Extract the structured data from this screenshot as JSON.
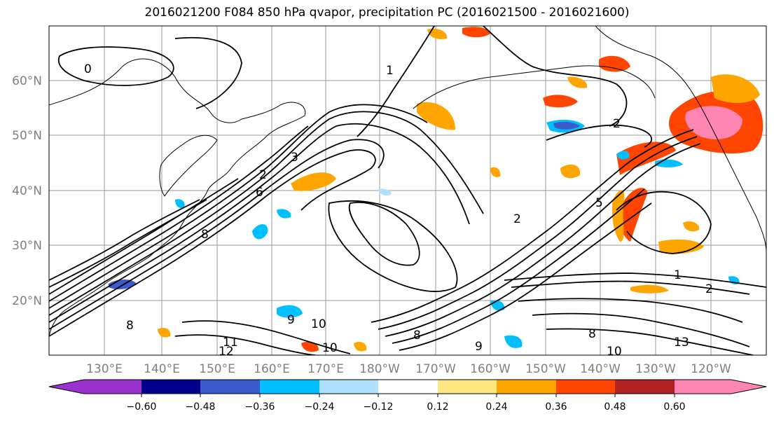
{
  "title": "2016021200 F084 850 hPa qvapor, precipitation PC (2016021500 - 2016021600)",
  "lat_labels": [
    "60°N",
    "50°N",
    "40°N",
    "30°N",
    "20°N"
  ],
  "lon_labels": [
    "130°E",
    "140°E",
    "150°E",
    "160°E",
    "170°E",
    "180°W",
    "170°W",
    "160°W",
    "150°W",
    "140°W",
    "130°W",
    "120°W"
  ],
  "colorbar": {
    "ticks": [
      "−0.60",
      "−0.48",
      "−0.36",
      "−0.24",
      "−0.12",
      "0.12",
      "0.24",
      "0.36",
      "0.48",
      "0.60"
    ],
    "colors": [
      "#9932cc",
      "#00008b",
      "#3a5bc9",
      "#00bfff",
      "#b0e0ff",
      "#ffffff",
      "#ffe680",
      "#ffa500",
      "#ff4500",
      "#b22222",
      "#ff85b3"
    ]
  },
  "contour_labels": [
    "0",
    "1",
    "1",
    "2",
    "2",
    "2",
    "2",
    "3",
    "5",
    "6",
    "8",
    "8",
    "8",
    "8",
    "9",
    "9",
    "10",
    "10",
    "10",
    "11",
    "12",
    "13"
  ]
}
